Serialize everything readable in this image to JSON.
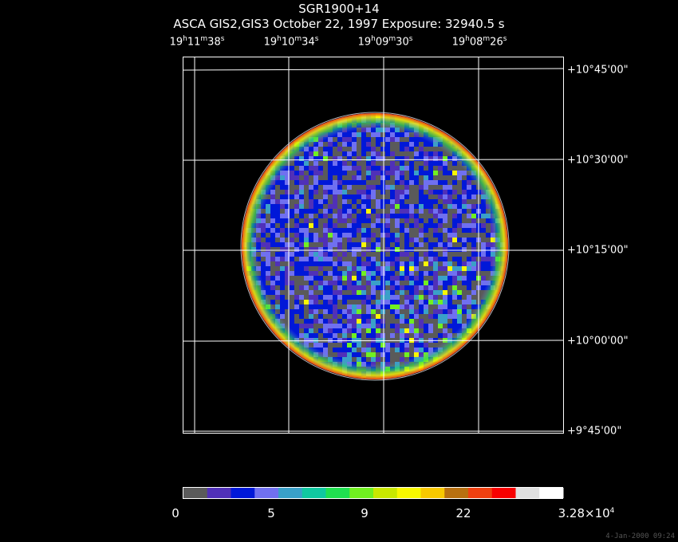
{
  "header": {
    "title": "SGR1900+14",
    "subtitle": "ASCA GIS2,GIS3 October 22, 1997 Exposure: 32940.5 s"
  },
  "axes": {
    "ra_ticks": [
      {
        "h": "19",
        "m": "11",
        "s": "38"
      },
      {
        "h": "19",
        "m": "10",
        "s": "34"
      },
      {
        "h": "19",
        "m": "09",
        "s": "30"
      },
      {
        "h": "19",
        "m": "08",
        "s": "26"
      }
    ],
    "dec_ticks": [
      "+10°45'00\"",
      "+10°30'00\"",
      "+10°15'00\"",
      "+10°00'00\"",
      "+9°45'00\""
    ]
  },
  "colorbar": {
    "labels": [
      {
        "text": "0"
      },
      {
        "text": "5"
      },
      {
        "text": "9"
      },
      {
        "text": "22"
      }
    ],
    "max_mantissa": "3.28×10",
    "max_exponent": "4",
    "colors": [
      "#5a5a5a",
      "#5030b8",
      "#0018d8",
      "#7070f0",
      "#3aa0c8",
      "#10c8a0",
      "#20e050",
      "#70f020",
      "#c8e800",
      "#f8f800",
      "#f8c800",
      "#b87010",
      "#f04010",
      "#f80000",
      "#e0e0e0",
      "#ffffff"
    ]
  },
  "footer": {
    "timestamp": "4-Jan-2000 09:24"
  }
}
